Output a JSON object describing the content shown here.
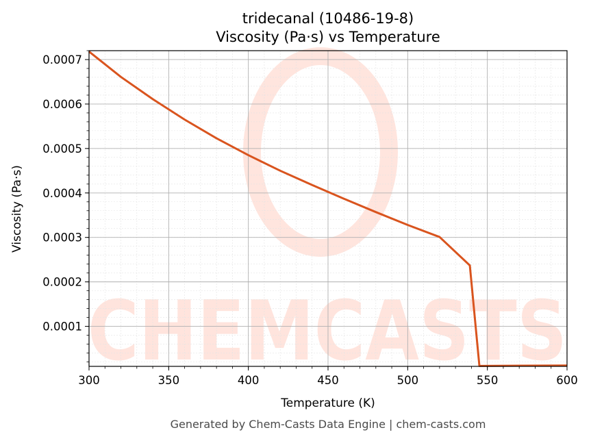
{
  "chart_data": {
    "type": "line",
    "title": "tridecanal (10486-19-8)",
    "subtitle": "Viscosity (Pa·s) vs Temperature",
    "xlabel": "Temperature (K)",
    "ylabel": "Viscosity (Pa·s)",
    "xlim": [
      300,
      600
    ],
    "ylim": [
      1e-05,
      0.00072
    ],
    "x_ticks": [
      300,
      350,
      400,
      450,
      500,
      550,
      600
    ],
    "x_tick_labels": [
      "300",
      "350",
      "400",
      "450",
      "500",
      "550",
      "600"
    ],
    "y_ticks": [
      0.0001,
      0.0002,
      0.0003,
      0.0004,
      0.0005,
      0.0006,
      0.0007
    ],
    "y_tick_labels": [
      "0.0001",
      "0.0002",
      "0.0003",
      "0.0004",
      "0.0005",
      "0.0006",
      "0.0007"
    ],
    "grid": true,
    "series": [
      {
        "color": "#d9541e",
        "x": [
          300,
          320,
          340,
          360,
          380,
          400,
          420,
          440,
          460,
          480,
          500,
          520,
          539,
          545,
          600
        ],
        "y": [
          0.000718,
          0.000661,
          0.000611,
          0.000565,
          0.000523,
          0.000485,
          0.00045,
          0.000418,
          0.000387,
          0.000357,
          0.000328,
          0.000301,
          0.000237,
          1.1e-05,
          1.2e-05
        ]
      }
    ]
  },
  "watermark": "CHEMCASTS",
  "footer": "Generated by Chem-Casts Data Engine | chem-casts.com"
}
